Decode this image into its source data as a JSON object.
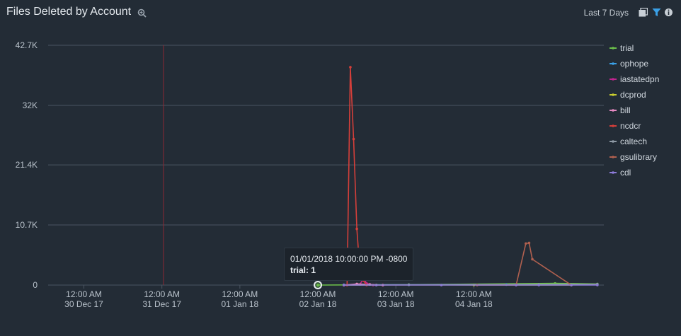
{
  "panel": {
    "title": "Files Deleted by Account",
    "time_range": "Last 7 Days"
  },
  "tooltip": {
    "datetime": "01/01/2018 10:00:00 PM -0800",
    "label": "trial: 1"
  },
  "colors": {
    "background": "#232c36",
    "grid": "#4a5561",
    "axis_text": "#b9c2cb",
    "accent": "#3aa0e6",
    "marker": "#8b2a35"
  },
  "chart_data": {
    "type": "line",
    "title": "Files Deleted by Account",
    "xlabel": "",
    "ylabel": "",
    "y_ticks": [
      "0",
      "10.7K",
      "21.4K",
      "32K",
      "42.7K"
    ],
    "y_tick_values": [
      0,
      10700,
      21400,
      32000,
      42700
    ],
    "ylim": [
      0,
      42700
    ],
    "x_ticks": [
      {
        "time": "12:00 AM",
        "date": "30 Dec 17",
        "hours": 0
      },
      {
        "time": "12:00 AM",
        "date": "31 Dec 17",
        "hours": 24
      },
      {
        "time": "12:00 AM",
        "date": "01 Jan 18",
        "hours": 48
      },
      {
        "time": "12:00 AM",
        "date": "02 Jan 18",
        "hours": 72
      },
      {
        "time": "12:00 AM",
        "date": "03 Jan 18",
        "hours": 96
      },
      {
        "time": "12:00 AM",
        "date": "04 Jan 18",
        "hours": 120
      }
    ],
    "xlim_hours": [
      -11,
      160
    ],
    "marker_line_hours": 24.5,
    "grid": true,
    "legend_position": "right",
    "series": [
      {
        "name": "trial",
        "color": "#6cc04a",
        "points": [
          [
            72,
            1
          ],
          [
            100,
            80
          ],
          [
            145,
            300
          ],
          [
            158,
            200
          ]
        ]
      },
      {
        "name": "ophope",
        "color": "#3aa0e6",
        "points": [
          [
            80,
            50
          ],
          [
            100,
            60
          ],
          [
            130,
            80
          ],
          [
            158,
            100
          ]
        ]
      },
      {
        "name": "iastatedpn",
        "color": "#c0248f",
        "points": [
          [
            80,
            0
          ],
          [
            85,
            100
          ],
          [
            86,
            1300
          ],
          [
            87,
            300
          ],
          [
            89,
            0
          ],
          [
            92,
            0
          ]
        ]
      },
      {
        "name": "dcprod",
        "color": "#c8cc2f",
        "points": [
          [
            80,
            0
          ],
          [
            90,
            20
          ],
          [
            120,
            10
          ],
          [
            150,
            0
          ]
        ]
      },
      {
        "name": "bill",
        "color": "#e78ac3",
        "points": [
          [
            80,
            0
          ],
          [
            84,
            200
          ],
          [
            88,
            100
          ],
          [
            92,
            0
          ]
        ]
      },
      {
        "name": "ncdcr",
        "color": "#d43f3a",
        "points": [
          [
            80,
            0
          ],
          [
            81,
            0
          ],
          [
            82,
            38800
          ],
          [
            83,
            26000
          ],
          [
            84,
            10000
          ],
          [
            85,
            2000
          ],
          [
            86,
            800
          ],
          [
            87,
            0
          ]
        ]
      },
      {
        "name": "caltech",
        "color": "#8f9aa5",
        "points": [
          [
            80,
            0
          ],
          [
            100,
            50
          ],
          [
            140,
            100
          ],
          [
            158,
            150
          ]
        ]
      },
      {
        "name": "gsulibrary",
        "color": "#b0604f",
        "points": [
          [
            121,
            0
          ],
          [
            133,
            0
          ],
          [
            136,
            7400
          ],
          [
            137,
            7500
          ],
          [
            138,
            4600
          ],
          [
            150,
            0
          ]
        ]
      },
      {
        "name": "cdl",
        "color": "#8c7ad8",
        "points": [
          [
            80,
            0
          ],
          [
            90,
            0
          ],
          [
            110,
            0
          ],
          [
            133,
            0
          ],
          [
            140,
            0
          ],
          [
            150,
            0
          ],
          [
            158,
            0
          ]
        ]
      }
    ]
  }
}
